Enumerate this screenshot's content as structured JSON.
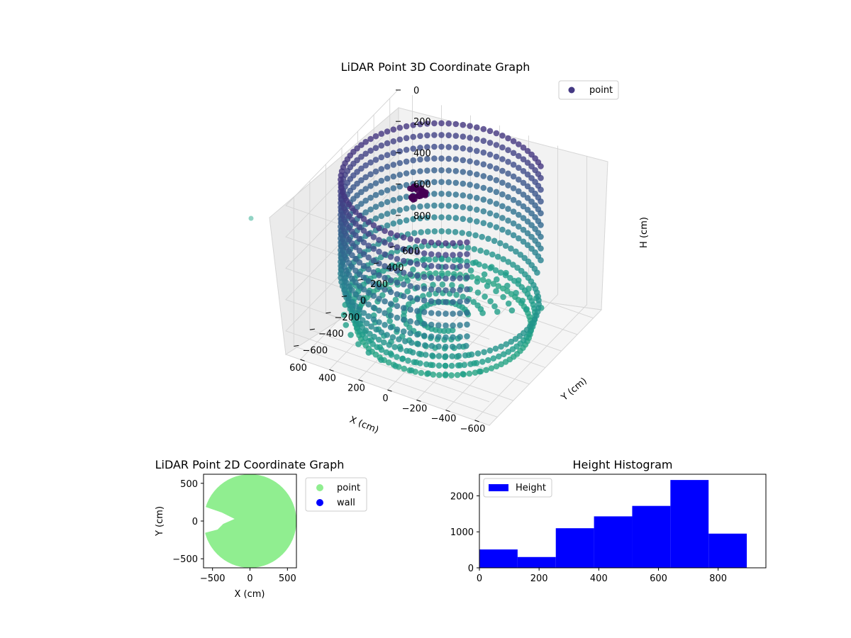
{
  "chart_data": [
    {
      "type": "scatter3d",
      "title": "LiDAR Point 3D Coordinate Graph",
      "xlabel": "X (cm)",
      "ylabel": "Y (cm)",
      "zlabel": "H (cm)",
      "xlim": [
        -700,
        700
      ],
      "ylim": [
        -700,
        700
      ],
      "zlim": [
        950,
        0
      ],
      "x_ticks": [
        -600,
        -400,
        -200,
        0,
        200,
        400,
        600
      ],
      "y_ticks": [
        -600,
        -400,
        -200,
        0,
        200,
        400,
        600
      ],
      "z_ticks": [
        0,
        200,
        400,
        600,
        800
      ],
      "legend": [
        "point"
      ],
      "legend_position": "top-right",
      "colormap": "viridis",
      "description_values": {
        "cylinder_radius": 620,
        "height_min": 0,
        "height_max": 900,
        "opening_center_x": -300,
        "opening_center_y": 0
      },
      "series": [
        {
          "name": "point",
          "color": "#443983"
        }
      ]
    },
    {
      "type": "scatter",
      "title": "LiDAR Point 2D Coordinate Graph",
      "xlabel": "X (cm)",
      "ylabel": "Y (cm)",
      "xlim": [
        -620,
        620
      ],
      "ylim": [
        -620,
        620
      ],
      "x_ticks": [
        -500,
        0,
        500
      ],
      "y_ticks": [
        -500,
        0,
        500
      ],
      "legend_position": "outside-right",
      "series": [
        {
          "name": "point",
          "color": "#90ee90",
          "disk_radius": 620,
          "opening_center": [
            -300,
            0
          ]
        },
        {
          "name": "wall",
          "color": "#0000ff"
        }
      ]
    },
    {
      "type": "histogram",
      "title": "Height Histogram",
      "xlabel": "",
      "ylabel": "",
      "xlim": [
        0,
        960
      ],
      "ylim": [
        0,
        2600
      ],
      "x_ticks": [
        0,
        200,
        400,
        600,
        800
      ],
      "y_ticks": [
        0,
        1000,
        2000
      ],
      "legend": [
        "Height"
      ],
      "legend_position": "top-left",
      "color": "#0000ff",
      "bins": [
        0,
        128,
        256,
        384,
        512,
        640,
        768,
        896
      ],
      "values": [
        510,
        300,
        1100,
        1430,
        1720,
        2440,
        950
      ]
    }
  ]
}
